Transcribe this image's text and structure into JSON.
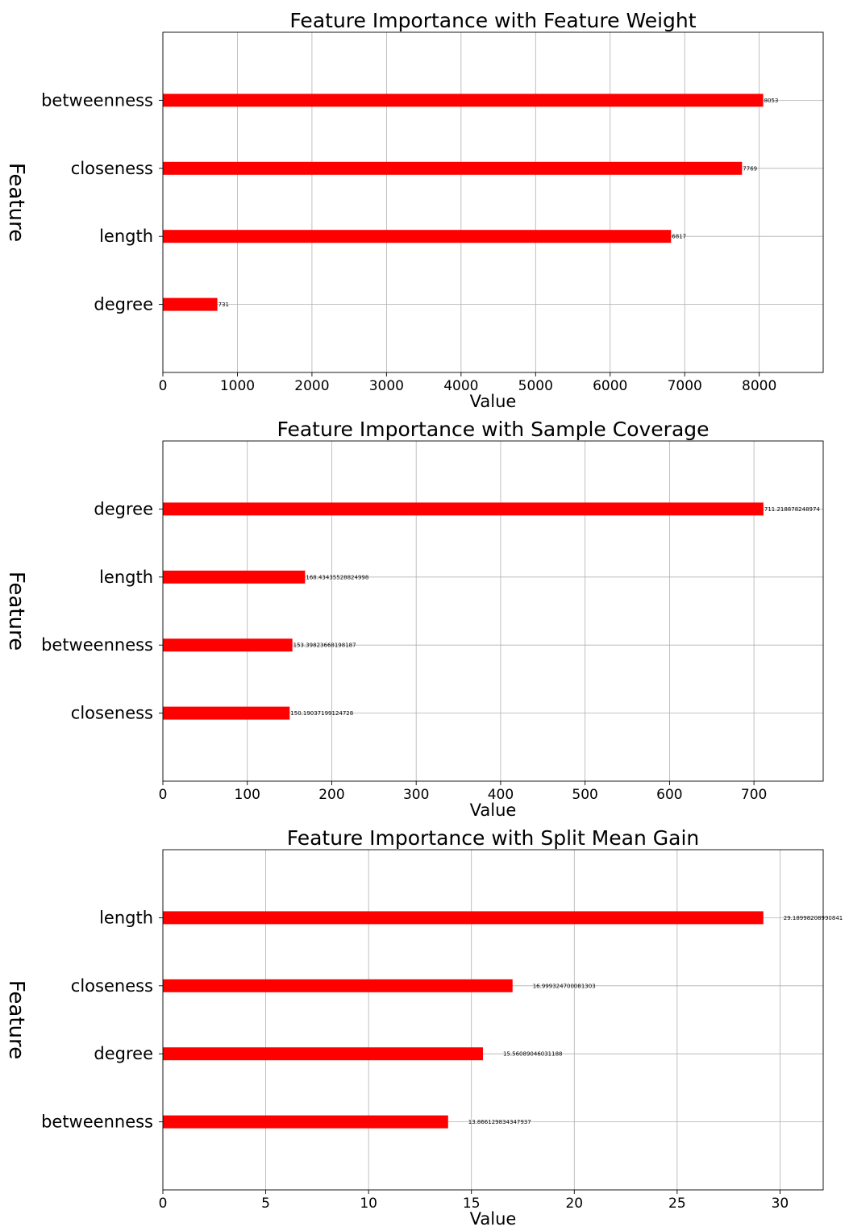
{
  "chart_data": [
    {
      "type": "bar",
      "orientation": "horizontal",
      "title": "Feature Importance with Feature Weight",
      "xlabel": "Value",
      "ylabel": "Feature",
      "categories": [
        "degree",
        "length",
        "closeness",
        "betweenness"
      ],
      "values": [
        731,
        6817,
        7769,
        8053
      ],
      "data_labels": [
        "731",
        "6817",
        "7769",
        "8053"
      ],
      "xlim": [
        0,
        8858
      ],
      "xticks": [
        0,
        1000,
        2000,
        3000,
        4000,
        5000,
        6000,
        7000,
        8000
      ],
      "grid": true,
      "color": "#ff0000"
    },
    {
      "type": "bar",
      "orientation": "horizontal",
      "title": "Feature Importance with Sample Coverage",
      "xlabel": "Value",
      "ylabel": "Feature",
      "categories": [
        "closeness",
        "betweenness",
        "length",
        "degree"
      ],
      "values": [
        150.19037199124728,
        153.39823668198187,
        168.43435528824998,
        711.218878248974
      ],
      "data_labels": [
        "150.19037199124728",
        "153.39823668198187",
        "168.43435528824998",
        "711.218878248974"
      ],
      "xlim": [
        0,
        782
      ],
      "xticks": [
        0,
        100,
        200,
        300,
        400,
        500,
        600,
        700
      ],
      "grid": true,
      "color": "#ff0000"
    },
    {
      "type": "bar",
      "orientation": "horizontal",
      "title": "Feature Importance with Split Mean Gain",
      "xlabel": "Value",
      "ylabel": "Feature",
      "categories": [
        "betweenness",
        "degree",
        "closeness",
        "length"
      ],
      "values": [
        13.866129834347937,
        15.56089046031188,
        16.999324700081303,
        29.18998208990841
      ],
      "data_labels": [
        "13.866129834347937",
        "15.56089046031188",
        "16.999324700081303",
        "29.18998208990841"
      ],
      "xlim": [
        0,
        32.1
      ],
      "xticks": [
        0,
        5,
        10,
        15,
        20,
        25,
        30
      ],
      "grid": true,
      "color": "#ff0000"
    }
  ]
}
